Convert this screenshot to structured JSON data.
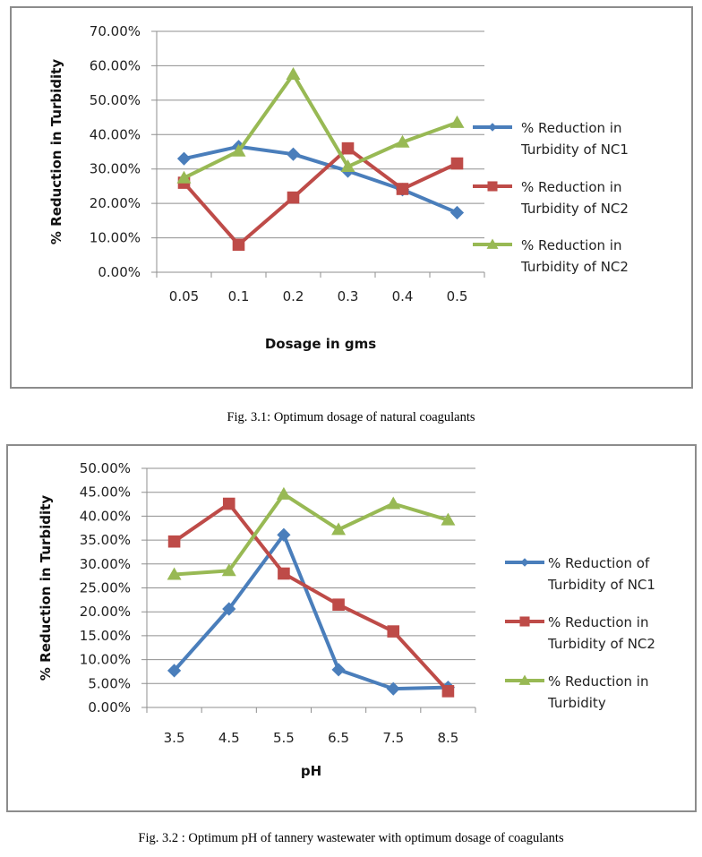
{
  "chart_data": [
    {
      "type": "line",
      "title": "",
      "xlabel": "Dosage in gms",
      "ylabel": "% Reduction in Turbidity",
      "categories": [
        "0.05",
        "0.1",
        "0.2",
        "0.3",
        "0.4",
        "0.5"
      ],
      "ylim": [
        0,
        70
      ],
      "yticks": [
        "0.00%",
        "10.00%",
        "20.00%",
        "30.00%",
        "40.00%",
        "50.00%",
        "60.00%",
        "70.00%"
      ],
      "ytick_values": [
        0,
        10,
        20,
        30,
        40,
        50,
        60,
        70
      ],
      "grid": true,
      "legend_position": "right",
      "series": [
        {
          "name": "% Reduction in Turbidity of NC1",
          "legend_lines": [
            "% Reduction in",
            "Turbidity of NC1"
          ],
          "color": "#4a7ebb",
          "marker": "diamond",
          "values": [
            33.0,
            36.5,
            34.3,
            29.4,
            24.0,
            17.3
          ]
        },
        {
          "name": "% Reduction in Turbidity of NC2",
          "legend_lines": [
            "% Reduction in",
            "Turbidity of NC2"
          ],
          "color": "#be4b48",
          "marker": "square",
          "values": [
            26.0,
            8.0,
            21.7,
            36.0,
            24.2,
            31.6
          ]
        },
        {
          "name": "% Reduction in Turbidity of NC2",
          "legend_lines": [
            "% Reduction in",
            "Turbidity of NC2"
          ],
          "color": "#98b954",
          "marker": "triangle",
          "values": [
            27.4,
            35.2,
            57.5,
            30.7,
            37.8,
            43.5
          ]
        }
      ]
    },
    {
      "type": "line",
      "title": "",
      "xlabel": "pH",
      "ylabel": "% Reduction in Turbidity",
      "categories": [
        "3.5",
        "4.5",
        "5.5",
        "6.5",
        "7.5",
        "8.5"
      ],
      "ylim": [
        0,
        50
      ],
      "yticks": [
        "0.00%",
        "5.00%",
        "10.00%",
        "15.00%",
        "20.00%",
        "25.00%",
        "30.00%",
        "35.00%",
        "40.00%",
        "45.00%",
        "50.00%"
      ],
      "ytick_values": [
        0,
        5,
        10,
        15,
        20,
        25,
        30,
        35,
        40,
        45,
        50
      ],
      "grid": true,
      "legend_position": "right",
      "series": [
        {
          "name": "% Reduction of Turbidity of NC1",
          "legend_lines": [
            "% Reduction of",
            "Turbidity of NC1"
          ],
          "color": "#4a7ebb",
          "marker": "diamond",
          "values": [
            7.7,
            20.6,
            36.1,
            7.9,
            3.9,
            4.2
          ]
        },
        {
          "name": "% Reduction in Turbidity of NC2",
          "legend_lines": [
            "% Reduction in",
            "Turbidity of NC2"
          ],
          "color": "#be4b48",
          "marker": "square",
          "values": [
            34.7,
            42.6,
            28.0,
            21.5,
            15.9,
            3.4
          ]
        },
        {
          "name": "% Reduction in Turbidity",
          "legend_lines": [
            "% Reduction in",
            "Turbidity"
          ],
          "color": "#98b954",
          "marker": "triangle",
          "values": [
            27.8,
            28.6,
            44.6,
            37.2,
            42.6,
            39.2
          ]
        }
      ]
    }
  ],
  "captions": {
    "fig1": "Fig.  3.1: Optimum dosage of  natural coagulants",
    "fig2": "Fig. 3.2 : Optimum pH of tannery wastewater with optimum dosage of coagulants"
  }
}
